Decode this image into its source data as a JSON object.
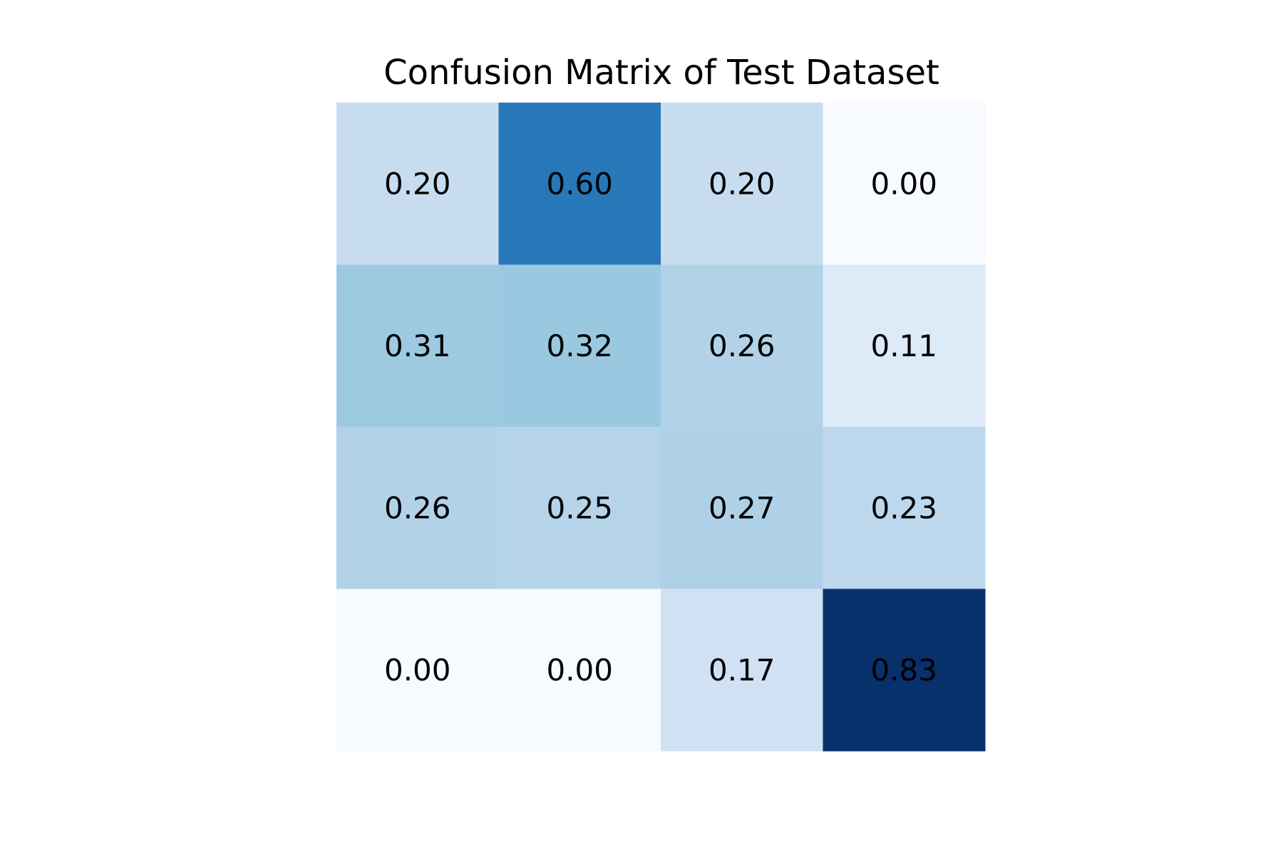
{
  "chart_data": {
    "type": "heatmap",
    "title": "Confusion Matrix of Test Dataset",
    "colormap": "Blues",
    "vmin": 0.0,
    "vmax": 0.83,
    "values": [
      [
        0.2,
        0.6,
        0.2,
        0.0
      ],
      [
        0.31,
        0.32,
        0.26,
        0.11
      ],
      [
        0.26,
        0.25,
        0.27,
        0.23
      ],
      [
        0.0,
        0.0,
        0.17,
        0.83
      ]
    ],
    "labels": [
      [
        "0.20",
        "0.60",
        "0.20",
        "0.00"
      ],
      [
        "0.31",
        "0.32",
        "0.26",
        "0.11"
      ],
      [
        "0.26",
        "0.25",
        "0.27",
        "0.23"
      ],
      [
        "0.00",
        "0.00",
        "0.17",
        "0.83"
      ]
    ],
    "axes_visible": false,
    "grid": false
  }
}
